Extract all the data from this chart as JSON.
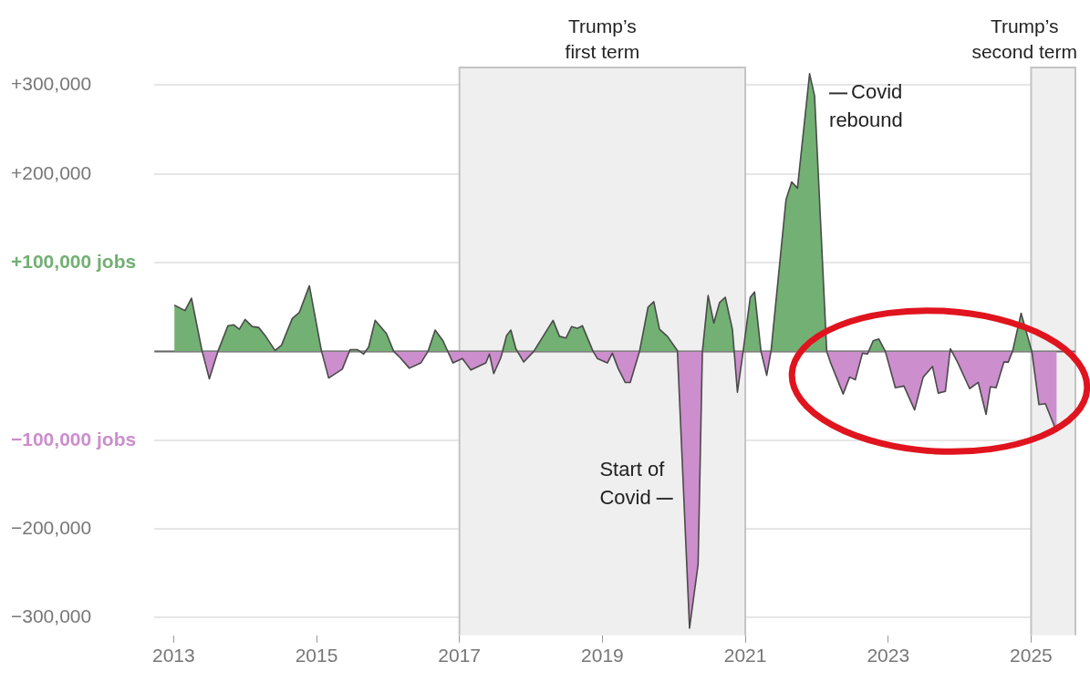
{
  "chart_data": {
    "type": "area",
    "x": [
      2013.01,
      2013.16,
      2013.25,
      2013.4,
      2013.5,
      2013.62,
      2013.76,
      2013.84,
      2013.92,
      2014.0,
      2014.1,
      2014.19,
      2014.28,
      2014.42,
      2014.51,
      2014.66,
      2014.76,
      2014.9,
      2015.07,
      2015.17,
      2015.36,
      2015.47,
      2015.57,
      2015.66,
      2015.73,
      2015.82,
      2015.98,
      2016.08,
      2016.17,
      2016.3,
      2016.46,
      2016.56,
      2016.66,
      2016.77,
      2016.91,
      2017.04,
      2017.16,
      2017.37,
      2017.42,
      2017.48,
      2017.58,
      2017.66,
      2017.72,
      2017.79,
      2017.9,
      2018.04,
      2018.31,
      2018.4,
      2018.49,
      2018.57,
      2018.65,
      2018.72,
      2018.87,
      2018.93,
      2019.07,
      2019.14,
      2019.22,
      2019.32,
      2019.39,
      2019.52,
      2019.64,
      2019.72,
      2019.8,
      2019.91,
      2020.05,
      2020.22,
      2020.34,
      2020.4,
      2020.48,
      2020.56,
      2020.64,
      2020.72,
      2020.82,
      2020.89,
      2020.97,
      2021.07,
      2021.13,
      2021.22,
      2021.3,
      2021.36,
      2021.57,
      2021.65,
      2021.73,
      2021.9,
      2021.97,
      2022.14,
      2022.19,
      2022.37,
      2022.46,
      2022.54,
      2022.64,
      2022.71,
      2022.79,
      2022.87,
      2022.96,
      2023.1,
      2023.22,
      2023.37,
      2023.49,
      2023.62,
      2023.7,
      2023.8,
      2023.87,
      2023.97,
      2024.14,
      2024.26,
      2024.37,
      2024.43,
      2024.51,
      2024.62,
      2024.68,
      2024.74,
      2024.86,
      2025.01,
      2025.11,
      2025.2,
      2025.36
    ],
    "series": [
      {
        "color": "#4a4a4a",
        "values": [
          52000,
          46000,
          60000,
          0,
          -31000,
          0,
          29000,
          30000,
          25000,
          36000,
          28000,
          27000,
          18000,
          1000,
          7000,
          37000,
          44000,
          74000,
          0,
          -30000,
          -20000,
          2000,
          2000,
          -3000,
          5000,
          35000,
          20000,
          0,
          -7000,
          -19000,
          -13000,
          0,
          24000,
          12000,
          -13000,
          -8000,
          -21000,
          -13000,
          -3000,
          -25000,
          -7000,
          18000,
          24000,
          3000,
          -12000,
          0,
          35000,
          17000,
          15000,
          28000,
          26000,
          29000,
          0,
          -8000,
          -13000,
          -2000,
          -19000,
          -35000,
          -35000,
          0,
          50000,
          56000,
          25000,
          17000,
          1000,
          -312000,
          -240000,
          0,
          63000,
          32000,
          55000,
          61000,
          25000,
          -46000,
          0,
          61000,
          67000,
          0,
          -27000,
          0,
          171000,
          191000,
          184000,
          313000,
          288000,
          0,
          -12000,
          -48000,
          -29000,
          -32000,
          -2000,
          -3000,
          12000,
          14000,
          0,
          -41000,
          -39000,
          -66000,
          -29000,
          -17000,
          -47000,
          -45000,
          3000,
          -12000,
          -42000,
          -35000,
          -71000,
          -40000,
          -41000,
          -12000,
          -12000,
          0,
          43000,
          0,
          -60000,
          -59000,
          -91000
        ]
      }
    ],
    "xlim": [
      2012.73,
      2025.62
    ],
    "xticks": [
      2013,
      2015,
      2017,
      2019,
      2021,
      2023,
      2025
    ],
    "ylim": [
      -320000,
      320000
    ],
    "yticks": [
      {
        "value": -300000,
        "label": "−300,000"
      },
      {
        "value": -200000,
        "label": "−200,000"
      },
      {
        "value": -100000,
        "label": "−100,000 jobs"
      },
      {
        "value": 0,
        "label": null
      },
      {
        "value": 100000,
        "label": "+100,000 jobs"
      },
      {
        "value": 200000,
        "label": "+200,000"
      },
      {
        "value": 300000,
        "label": "+300,000"
      }
    ],
    "grid": "y",
    "legend": false,
    "marker": "none",
    "line_style": "solid",
    "bands": [
      {
        "axis": "x",
        "from": 2017,
        "to": 2021,
        "label": "Trump’s\nfirst term",
        "color": "#efefef"
      },
      {
        "axis": "x",
        "from": 2025,
        "to": 2025.62,
        "label": "Trump’s\nsecond term",
        "color": "#efefef"
      }
    ],
    "annotations": [
      {
        "text": "Covid\nrebound",
        "x": 2021.97,
        "y": 260000
      },
      {
        "text": "Start of\nCovid",
        "x": 2020.14,
        "y": -166000
      }
    ]
  }
}
